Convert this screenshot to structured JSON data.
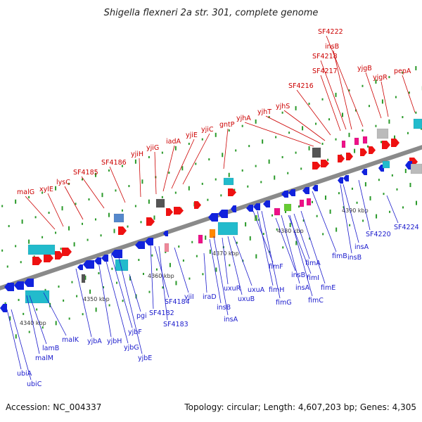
{
  "title": "Shigella flexneri 2a str. 301, complete genome",
  "footer": {
    "accession": "Accession: NC_004337",
    "summary": "Topology: circular; Length: 4,607,203 bp; Genes: 4,305"
  },
  "colors": {
    "backbone": "#8a8a8a",
    "upper_label": "#cc0000",
    "lower_label": "#1a1acc",
    "forward_gene": "#ee1111",
    "reverse_gene": "#1122dd",
    "other_gene": "#22bbcc",
    "tick": "#2a9a2a"
  },
  "scale_labels": [
    "4340 kbp",
    "4350 kbp",
    "4360 kbp",
    "4370 kbp",
    "4380 kbp",
    "4390 kbp"
  ],
  "upper_genes": [
    "malG",
    "xylE",
    "lysC",
    "SF4185",
    "SF4186",
    "yjiH",
    "yjiG",
    "iadA",
    "yjiE",
    "yjiC",
    "gntP",
    "yjhA",
    "yjhT",
    "yjhS",
    "SF4216",
    "SF4217",
    "SF4218",
    "insB",
    "SF4222",
    "yjgB",
    "yjgR",
    "pepA"
  ],
  "lower_genes": [
    "ubiA",
    "ubiC",
    "lamB",
    "malM",
    "malK",
    "yjbA",
    "yjbH",
    "yjbG",
    "yjbF",
    "yjbE",
    "pgi",
    "SF4182",
    "SF4183",
    "SF4184",
    "yjiI",
    "iraD",
    "insB",
    "insA",
    "uxuR",
    "uxuB",
    "uxuA",
    "fimF",
    "fimH",
    "fimG",
    "insB",
    "insA",
    "fimI",
    "fimC",
    "fimA",
    "fimE",
    "fimB",
    "insA",
    "insB",
    "SF4220",
    "SF4224"
  ]
}
